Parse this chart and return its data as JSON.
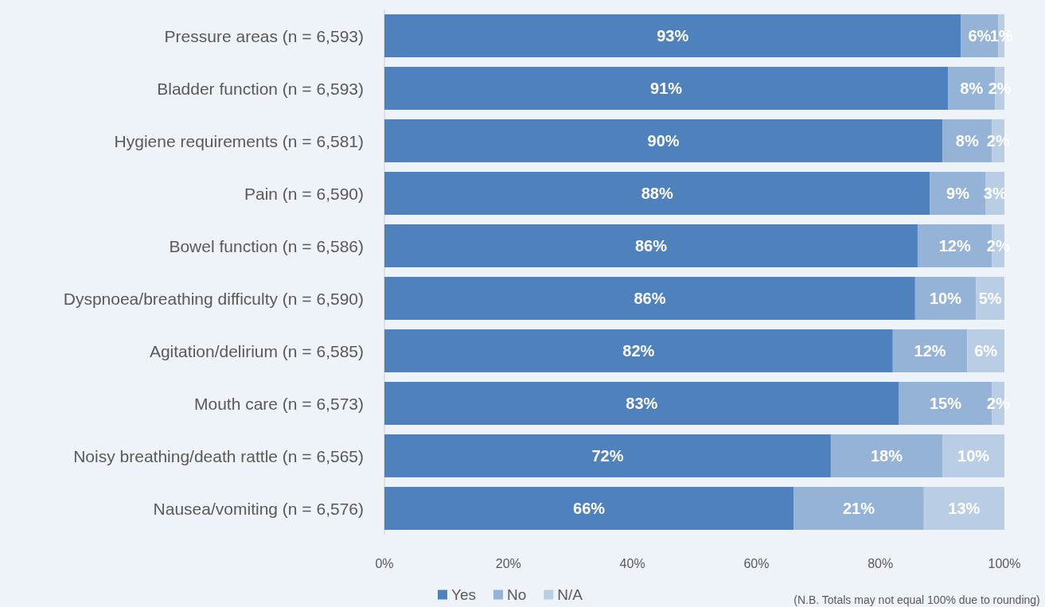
{
  "chart_data": {
    "type": "bar",
    "orientation": "horizontal",
    "stacked": true,
    "categories": [
      "Pressure areas (n = 6,593)",
      "Bladder function (n = 6,593)",
      "Hygiene requirements (n = 6,581)",
      "Pain (n = 6,590)",
      "Bowel function (n = 6,586)",
      "Dyspnoea/breathing difficulty (n = 6,590)",
      "Agitation/delirium (n = 6,585)",
      "Mouth care (n = 6,573)",
      "Noisy breathing/death rattle (n = 6,565)",
      "Nausea/vomiting (n = 6,576)"
    ],
    "series": [
      {
        "name": "Yes",
        "color": "#4f81bd",
        "values": [
          93,
          90.9,
          90,
          88,
          86,
          85.6,
          82,
          83,
          72,
          66
        ],
        "value_labels": [
          "93%",
          "91%",
          "90%",
          "88%",
          "86%",
          "86%",
          "82%",
          "83%",
          "72%",
          "66%"
        ]
      },
      {
        "name": "No",
        "color": "#95b3d7",
        "values": [
          6,
          7.6,
          8,
          9,
          12,
          9.8,
          12,
          15,
          18,
          21
        ],
        "value_labels": [
          "6%",
          "8%",
          "8%",
          "9%",
          "12%",
          "10%",
          "12%",
          "15%",
          "18%",
          "21%"
        ]
      },
      {
        "name": "N/A",
        "color": "#b9cde5",
        "values": [
          1,
          1.5,
          2,
          3,
          2,
          4.6,
          6,
          2,
          10,
          13
        ],
        "value_labels": [
          "1%",
          "2%",
          "2%",
          "3%",
          "2%",
          "5%",
          "6%",
          "2%",
          "10%",
          "13%"
        ]
      }
    ],
    "xlim": [
      0,
      100
    ],
    "xticks": [
      {
        "value": 0,
        "label": "0%"
      },
      {
        "value": 20,
        "label": "20%"
      },
      {
        "value": 40,
        "label": "40%"
      },
      {
        "value": 60,
        "label": "60%"
      },
      {
        "value": 80,
        "label": "80%"
      },
      {
        "value": 100,
        "label": "100%"
      }
    ],
    "legend": "bottom",
    "annotations": [
      "(N.B. Totals may not equal 100% due to rounding)"
    ]
  }
}
